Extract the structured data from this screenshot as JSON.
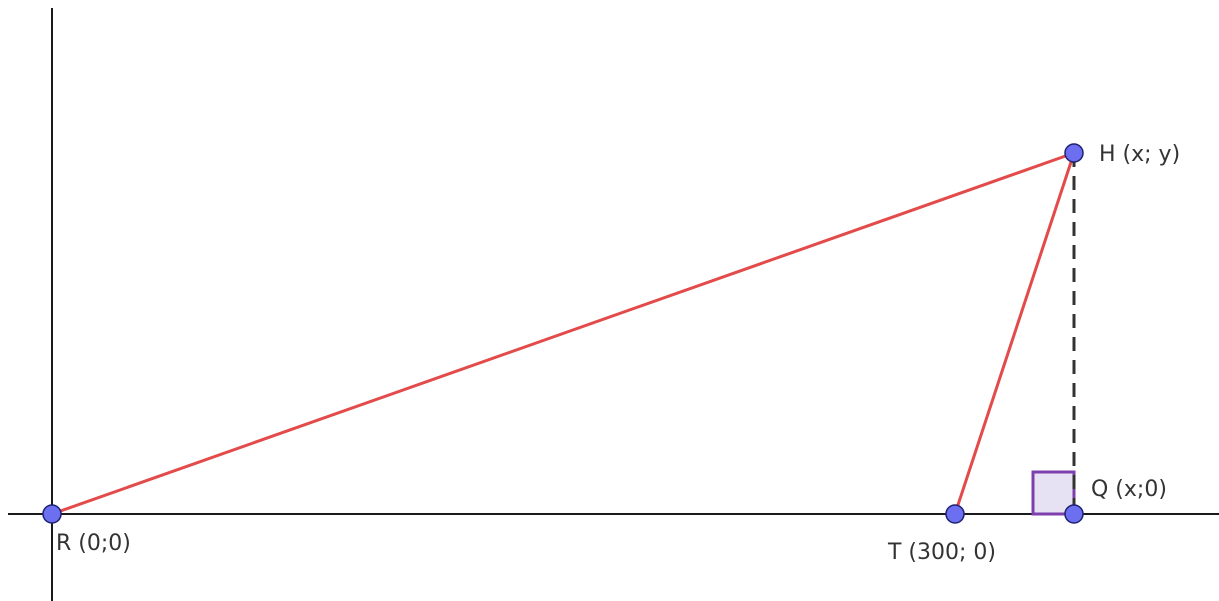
{
  "points": {
    "R": {
      "label": "R (0;0)"
    },
    "T": {
      "label": "T (300; 0)"
    },
    "Q": {
      "label": "Q (x;0)"
    },
    "H": {
      "label": "H (x; y)"
    }
  },
  "colors": {
    "axis": "#1a1a1a",
    "segment": "#e34b4b",
    "altitude": "#333333",
    "point_fill": "#6b6ff0",
    "point_stroke": "#1f2270",
    "right_angle_fill": "#e6e1f3",
    "right_angle_stroke": "#7d3fad"
  }
}
